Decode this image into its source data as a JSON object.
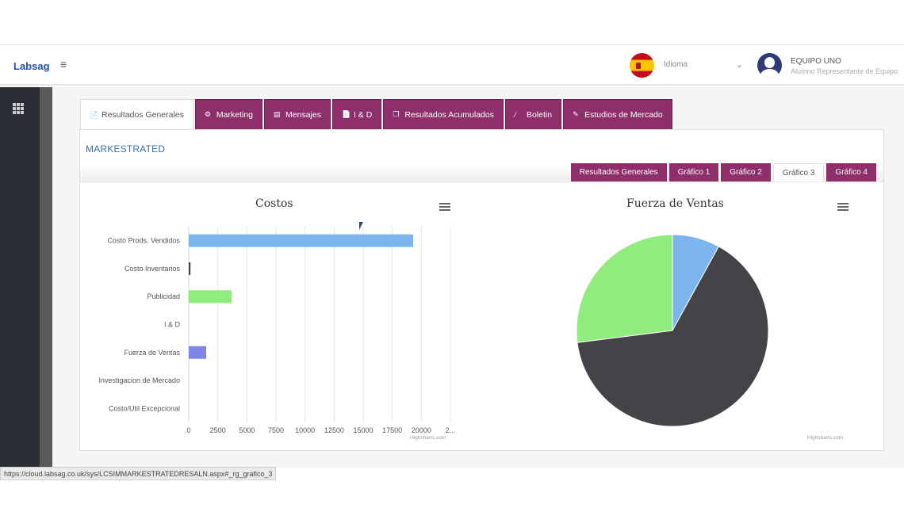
{
  "header": {
    "brand": "Labsag",
    "hamburger": "≡",
    "language": {
      "label": "Idioma",
      "chevron": "⌄",
      "flag": "spain-flag"
    },
    "user": {
      "name": "EQUIPO UNO",
      "role": "Alumno Representante de Equipo",
      "avatar": "user-avatar-icon"
    }
  },
  "sidebar": {
    "icon": "apps-grid-icon"
  },
  "tabs": [
    {
      "label": "Resultados Generales",
      "icon": "📄",
      "active": true
    },
    {
      "label": "Marketing",
      "icon": "⚙",
      "active": false
    },
    {
      "label": "Mensajes",
      "icon": "▤",
      "active": false
    },
    {
      "label": "I & D",
      "icon": "📄",
      "active": false
    },
    {
      "label": "Resultados Acumulados",
      "icon": "❐",
      "active": false
    },
    {
      "label": "Boletin",
      "icon": "⁄",
      "active": false
    },
    {
      "label": "Estudios de Mercado",
      "icon": "✎",
      "active": false
    }
  ],
  "panel": {
    "title": "MARKESTRATED"
  },
  "subtabs": [
    {
      "label": "Resultados Generales",
      "active": false
    },
    {
      "label": "Gráfico 1",
      "active": false
    },
    {
      "label": "Gráfico 2",
      "active": false
    },
    {
      "label": "Gráfico 3",
      "active": true
    },
    {
      "label": "Gráfico 4",
      "active": false
    }
  ],
  "credits": "Highcharts.com",
  "status_url": "https://cloud.labsag.co.uk/sys/LCSIMMARKESTRATEDRESALN.aspx#_rg_grafico_3",
  "colors": {
    "accent": "#8e2f6a",
    "bar_blue": "#7cb5ec",
    "bar_green": "#90ed7d",
    "bar_purple": "#8085e9",
    "pie_dark": "#434348"
  },
  "chart_data": [
    {
      "type": "bar",
      "title": "Costos",
      "categories": [
        "Costo Prods. Vendidos",
        "Costo Inventarios",
        "Publicidad",
        "I & D",
        "Fuerza de Ventas",
        "Investigacion de Mercado",
        "Costo/Util Excepcional"
      ],
      "values": [
        19300,
        150,
        3700,
        0,
        1500,
        0,
        0
      ],
      "bar_colors": [
        "#7cb5ec",
        "#434348",
        "#90ed7d",
        "#f7a35c",
        "#8085e9",
        "#f15c80",
        "#e4d354"
      ],
      "xticks": [
        "0",
        "2500",
        "5000",
        "7500",
        "10000",
        "12500",
        "15000",
        "17500",
        "20000",
        "2..."
      ],
      "xlim": [
        0,
        22500
      ],
      "grid": true
    },
    {
      "type": "pie",
      "title": "Fuerza de Ventas",
      "values": [
        8,
        65,
        27
      ],
      "slice_colors": [
        "#7cb5ec",
        "#434348",
        "#90ed7d"
      ]
    }
  ]
}
